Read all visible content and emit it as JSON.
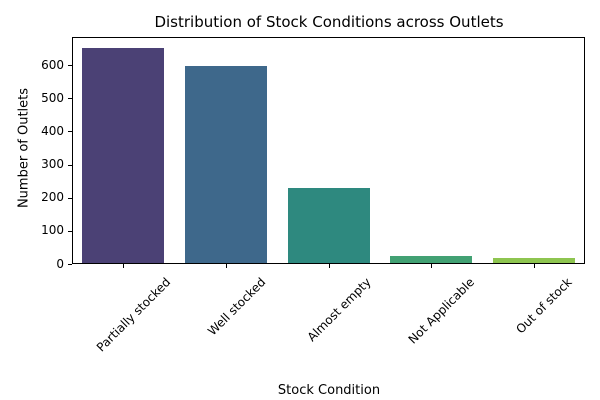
{
  "chart_data": {
    "type": "bar",
    "title": "Distribution of Stock Conditions across Outlets",
    "xlabel": "Stock Condition",
    "ylabel": "Number of Outlets",
    "categories": [
      "Partially stocked",
      "Well stocked",
      "Almost empty",
      "Not Applicable",
      "Out of stock"
    ],
    "values": [
      650,
      595,
      225,
      20,
      14
    ],
    "bar_colors": [
      "#4b4175",
      "#3e688b",
      "#2e897f",
      "#42a173",
      "#8ec550"
    ],
    "yticks": [
      0,
      100,
      200,
      300,
      400,
      500,
      600
    ],
    "ylim": [
      0,
      685
    ],
    "grid": false,
    "legend": null,
    "axis_color": "#000000",
    "background_color": "#ffffff"
  }
}
